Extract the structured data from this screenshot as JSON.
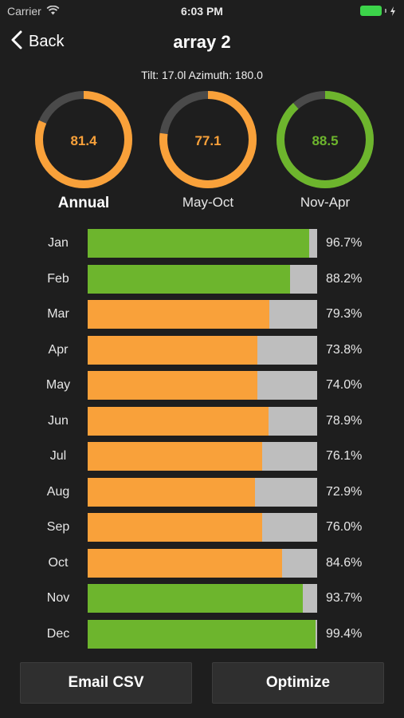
{
  "status_bar": {
    "carrier": "Carrier",
    "time": "6:03 PM"
  },
  "nav": {
    "back_label": "Back",
    "title": "array 2"
  },
  "subtitle": "Tilt: 17.0l Azimuth: 180.0",
  "colors": {
    "orange": "#f9a13a",
    "green": "#6db52d",
    "track": "#bebebe",
    "gauge_track": "#4a4a4a"
  },
  "gauges": [
    {
      "value": "81.4",
      "fraction": 0.814,
      "label": "Annual",
      "color": "#f9a13a"
    },
    {
      "value": "77.1",
      "fraction": 0.771,
      "label": "May-Oct",
      "color": "#f9a13a"
    },
    {
      "value": "88.5",
      "fraction": 0.885,
      "label": "Nov-Apr",
      "color": "#6db52d"
    }
  ],
  "months": [
    {
      "month": "Jan",
      "value": 96.7,
      "label": "96.7%",
      "color": "#6db52d"
    },
    {
      "month": "Feb",
      "value": 88.2,
      "label": "88.2%",
      "color": "#6db52d"
    },
    {
      "month": "Mar",
      "value": 79.3,
      "label": "79.3%",
      "color": "#f9a13a"
    },
    {
      "month": "Apr",
      "value": 73.8,
      "label": "73.8%",
      "color": "#f9a13a"
    },
    {
      "month": "May",
      "value": 74.0,
      "label": "74.0%",
      "color": "#f9a13a"
    },
    {
      "month": "Jun",
      "value": 78.9,
      "label": "78.9%",
      "color": "#f9a13a"
    },
    {
      "month": "Jul",
      "value": 76.1,
      "label": "76.1%",
      "color": "#f9a13a"
    },
    {
      "month": "Aug",
      "value": 72.9,
      "label": "72.9%",
      "color": "#f9a13a"
    },
    {
      "month": "Sep",
      "value": 76.0,
      "label": "76.0%",
      "color": "#f9a13a"
    },
    {
      "month": "Oct",
      "value": 84.6,
      "label": "84.6%",
      "color": "#f9a13a"
    },
    {
      "month": "Nov",
      "value": 93.7,
      "label": "93.7%",
      "color": "#6db52d"
    },
    {
      "month": "Dec",
      "value": 99.4,
      "label": "99.4%",
      "color": "#6db52d"
    }
  ],
  "footer": {
    "email_label": "Email CSV",
    "optimize_label": "Optimize"
  }
}
